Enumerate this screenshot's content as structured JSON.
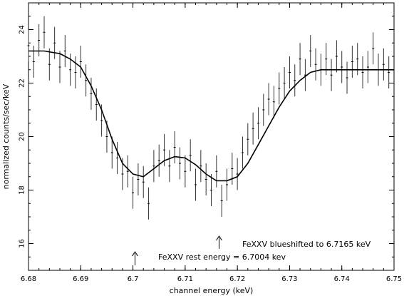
{
  "chart_data": {
    "type": "scatter",
    "title": "",
    "xlabel": "channel energy (keV)",
    "ylabel": "normalized counts/sec/keV",
    "xlim": [
      6.68,
      6.75
    ],
    "ylim": [
      15,
      25
    ],
    "xticks": [
      6.68,
      6.69,
      6.7,
      6.71,
      6.72,
      6.73,
      6.74,
      6.75
    ],
    "xtick_labels": [
      "6.68",
      "6.69",
      "6.7",
      "6.71",
      "6.72",
      "6.73",
      "6.74",
      "6.75"
    ],
    "yticks": [
      16,
      18,
      20,
      22,
      24
    ],
    "ytick_labels": [
      "16",
      "18",
      "20",
      "22",
      "24"
    ],
    "grid": false,
    "series": [
      {
        "kind": "model-line",
        "x": [
          6.68,
          6.683,
          6.686,
          6.688,
          6.69,
          6.692,
          6.694,
          6.696,
          6.698,
          6.7,
          6.702,
          6.704,
          6.706,
          6.708,
          6.71,
          6.712,
          6.714,
          6.716,
          6.718,
          6.72,
          6.722,
          6.724,
          6.726,
          6.728,
          6.73,
          6.732,
          6.734,
          6.736,
          6.74,
          6.745,
          6.75
        ],
        "y": [
          23.2,
          23.2,
          23.1,
          22.9,
          22.6,
          21.9,
          21.0,
          19.9,
          19.0,
          18.6,
          18.5,
          18.8,
          19.1,
          19.25,
          19.2,
          18.95,
          18.6,
          18.35,
          18.35,
          18.5,
          19.0,
          19.7,
          20.4,
          21.1,
          21.7,
          22.1,
          22.4,
          22.5,
          22.5,
          22.5,
          22.5
        ]
      },
      {
        "kind": "data-with-errors",
        "x": [
          6.68,
          6.681,
          6.682,
          6.683,
          6.684,
          6.685,
          6.686,
          6.687,
          6.688,
          6.689,
          6.69,
          6.691,
          6.692,
          6.693,
          6.694,
          6.695,
          6.696,
          6.697,
          6.698,
          6.699,
          6.7,
          6.701,
          6.702,
          6.703,
          6.704,
          6.705,
          6.706,
          6.707,
          6.708,
          6.709,
          6.71,
          6.711,
          6.712,
          6.713,
          6.714,
          6.715,
          6.716,
          6.717,
          6.718,
          6.719,
          6.72,
          6.721,
          6.722,
          6.723,
          6.724,
          6.725,
          6.726,
          6.727,
          6.728,
          6.729,
          6.73,
          6.731,
          6.732,
          6.733,
          6.734,
          6.735,
          6.736,
          6.737,
          6.738,
          6.739,
          6.74,
          6.741,
          6.742,
          6.743,
          6.744,
          6.745,
          6.746,
          6.747,
          6.748,
          6.749
        ],
        "y": [
          23.4,
          22.8,
          23.6,
          23.9,
          22.7,
          23.5,
          22.6,
          23.2,
          22.5,
          22.4,
          22.8,
          22.1,
          21.6,
          21.2,
          20.6,
          20.0,
          19.4,
          19.2,
          18.6,
          18.7,
          17.9,
          18.4,
          18.3,
          17.5,
          18.9,
          19.1,
          19.5,
          18.9,
          19.6,
          19.0,
          18.7,
          19.3,
          18.2,
          18.9,
          18.4,
          18.0,
          18.7,
          17.6,
          18.2,
          18.8,
          18.6,
          19.4,
          19.9,
          20.3,
          20.5,
          21.0,
          21.4,
          21.3,
          21.8,
          22.0,
          22.4,
          22.1,
          22.9,
          22.3,
          23.2,
          22.7,
          22.5,
          22.9,
          22.3,
          23.0,
          22.6,
          22.2,
          22.8,
          22.9,
          22.4,
          22.6,
          23.3,
          22.5,
          22.7,
          22.4
        ],
        "err": 0.6
      }
    ],
    "annotations": [
      {
        "text": "FeXXV rest energy = 6.7004 kev",
        "x": 6.7004,
        "arrow": true
      },
      {
        "text": "FeXXV blueshifted to 6.7165 keV",
        "x": 6.7165,
        "arrow": true
      }
    ]
  }
}
